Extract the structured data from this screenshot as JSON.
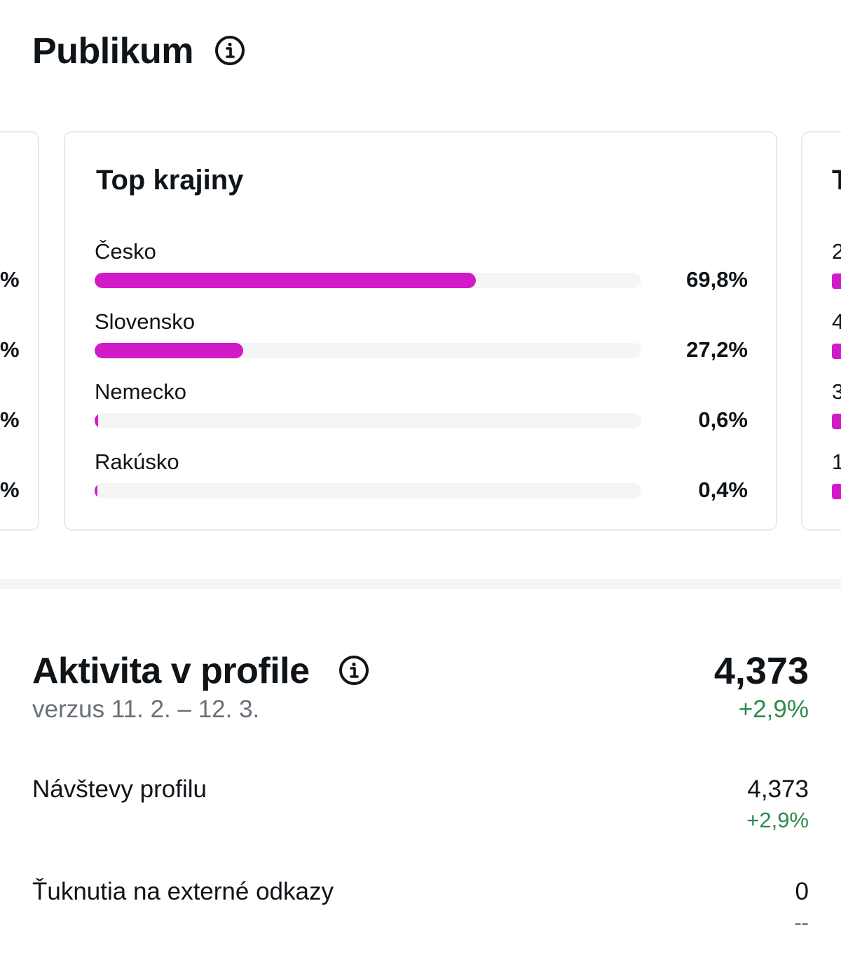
{
  "audience": {
    "title": "Publikum"
  },
  "top_countries": {
    "title": "Top krajiny",
    "items": [
      {
        "country": "Česko",
        "value_label": "69,8%",
        "share": 69.8
      },
      {
        "country": "Slovensko",
        "value_label": "27,2%",
        "share": 27.2
      },
      {
        "country": "Nemecko",
        "value_label": "0,6%",
        "share": 0.6
      },
      {
        "country": "Rakúsko",
        "value_label": "0,4%",
        "share": 0.4
      }
    ]
  },
  "left_card": {
    "row_suffix": "%"
  },
  "right_card": {
    "title_initial": "T",
    "row_initials": [
      "2",
      "4",
      "3",
      "1"
    ]
  },
  "activity": {
    "title": "Aktivita v profile",
    "comparison": "verzus 11. 2. – 12. 3.",
    "total": "4,373",
    "total_delta": "+2,9%",
    "metrics": [
      {
        "label": "Návštevy profilu",
        "value": "4,373",
        "delta": "+2,9%"
      },
      {
        "label": "Ťuknutia na externé odkazy",
        "value": "0",
        "delta": "--"
      }
    ]
  },
  "colors": {
    "bar_fill": "#d21bc8",
    "bar_track": "#f5f5f6",
    "positive": "#2f8a4b",
    "muted": "#687077"
  },
  "icons": {
    "info": "info-icon"
  }
}
